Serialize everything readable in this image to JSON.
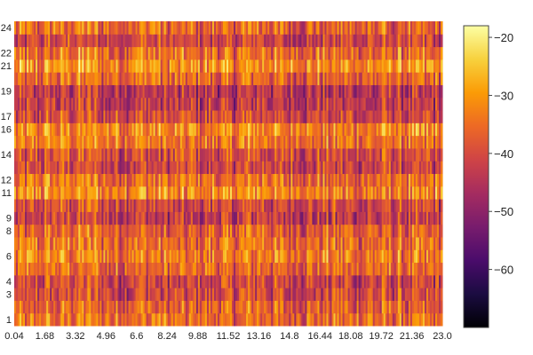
{
  "chart_data": {
    "type": "heatmap",
    "title": "",
    "xlabel": "",
    "ylabel": "",
    "x_tick_labels": [
      "0.04",
      "1.68",
      "3.32",
      "4.96",
      "6.6",
      "8.24",
      "9.88",
      "11.52",
      "13.16",
      "14.8",
      "16.44",
      "18.08",
      "19.72",
      "21.36",
      "23.0"
    ],
    "xlim": [
      0.04,
      23.0
    ],
    "y_tick_labels": [
      "1",
      "3",
      "4",
      "6",
      "8",
      "9",
      "11",
      "12",
      "14",
      "16",
      "17",
      "19",
      "21",
      "22",
      "24"
    ],
    "ylim": [
      1,
      24
    ],
    "n_rows": 24,
    "n_cols": 240,
    "colorscale": "inferno",
    "colorscale_stops": [
      "#000004",
      "#1b0c41",
      "#4a0c6b",
      "#781c6d",
      "#a52c60",
      "#cf4446",
      "#ed6925",
      "#fb9b06",
      "#f7d13d",
      "#fcffa4"
    ],
    "zlim": [
      -70,
      -18
    ],
    "colorbar_ticks": [
      "−20",
      "−30",
      "−40",
      "−50",
      "−60"
    ],
    "colorbar_tick_values": [
      -20,
      -30,
      -40,
      -50,
      -60
    ],
    "row_mean_values": [
      -36,
      -38,
      -41,
      -42,
      -37,
      -34,
      -36,
      -38,
      -44,
      -42,
      -33,
      -36,
      -42,
      -41,
      -35,
      -33,
      -41,
      -44,
      -45,
      -37,
      -32,
      -36,
      -42,
      -37
    ],
    "col_band_values": [
      0,
      2,
      3,
      0,
      2,
      0,
      0,
      0,
      2,
      0,
      0,
      0,
      0,
      0,
      0
    ]
  }
}
